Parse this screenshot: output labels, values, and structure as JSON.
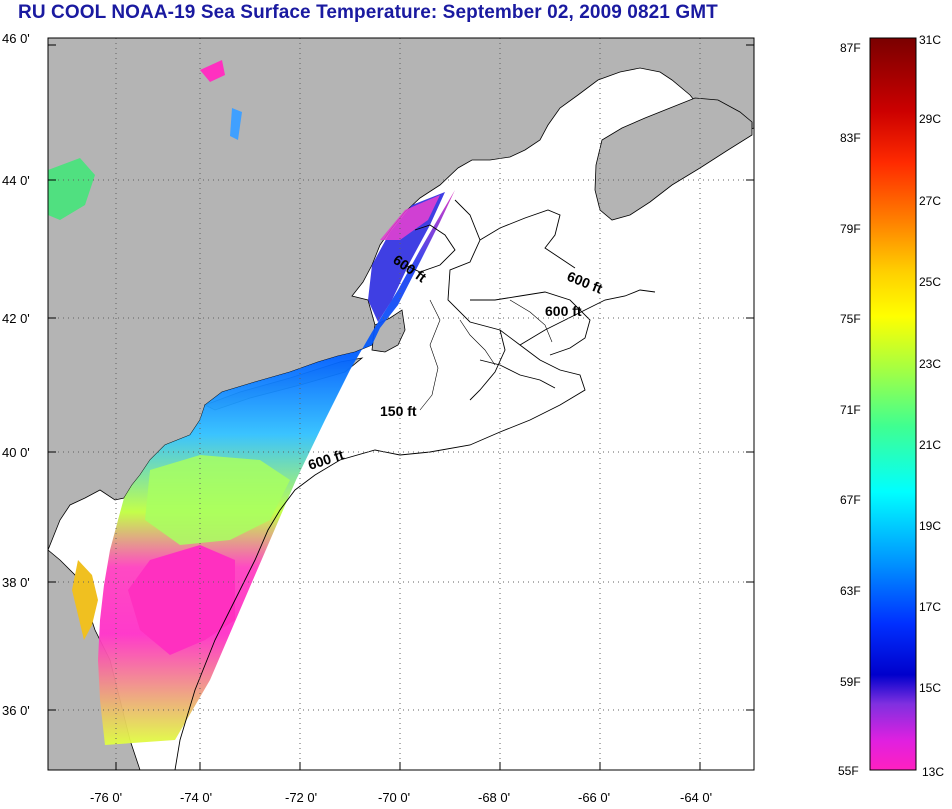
{
  "title": "RU COOL  NOAA-19  Sea Surface Temperature:  September 02, 2009 0821 GMT",
  "map": {
    "lat_range": [
      35,
      46
    ],
    "lon_range": [
      -77,
      -63
    ],
    "lat_ticks": [
      {
        "value": 46,
        "label": "46 0'"
      },
      {
        "value": 44,
        "label": "44 0'"
      },
      {
        "value": 42,
        "label": "42 0'"
      },
      {
        "value": 40,
        "label": "40 0'"
      },
      {
        "value": 38,
        "label": "38 0'"
      },
      {
        "value": 36,
        "label": "36 0'"
      }
    ],
    "lon_ticks": [
      {
        "value": -76,
        "label": "-76 0'"
      },
      {
        "value": -74,
        "label": "-74 0'"
      },
      {
        "value": -72,
        "label": "-72 0'"
      },
      {
        "value": -70,
        "label": "-70 0'"
      },
      {
        "value": -68,
        "label": "-68 0'"
      },
      {
        "value": -66,
        "label": "-66 0'"
      },
      {
        "value": -64,
        "label": "-64 0'"
      }
    ],
    "contour_labels": [
      {
        "text": "600 ft"
      },
      {
        "text": "600 ft"
      },
      {
        "text": "600 ft"
      },
      {
        "text": "150 ft"
      },
      {
        "text": "600 ft"
      }
    ],
    "colors": {
      "land": "#b4b4b4",
      "ocean_no_data": "#ffffff",
      "title": "#1a1aa0"
    }
  },
  "colorbar": {
    "fahrenheit_labels": [
      "87F",
      "83F",
      "79F",
      "75F",
      "71F",
      "67F",
      "63F",
      "59F",
      "55F"
    ],
    "celsius_labels": [
      "31C",
      "29C",
      "27C",
      "25C",
      "23C",
      "21C",
      "19C",
      "17C",
      "15C",
      "13C"
    ],
    "range_c": [
      13,
      31
    ]
  }
}
